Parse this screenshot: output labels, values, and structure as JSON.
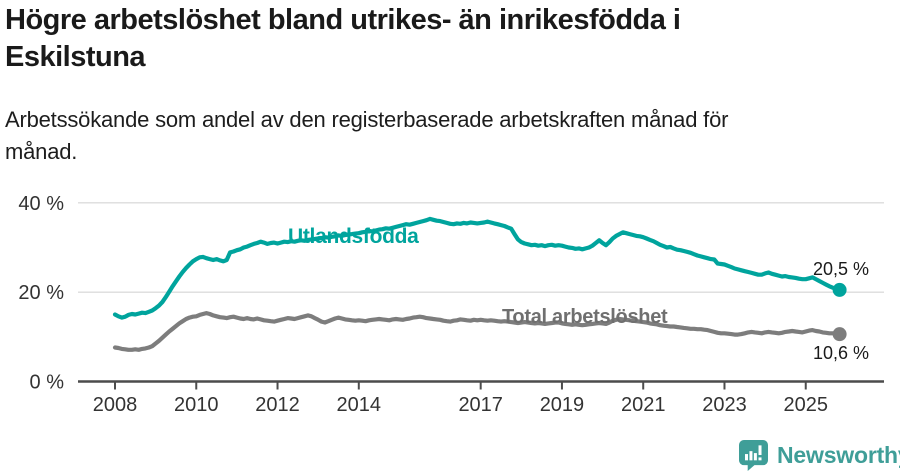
{
  "header": {
    "title": "Högre arbetslöshet bland utrikes- än inrikesfödda i Eskilstuna",
    "subtitle": "Arbetssökande som andel av den registerbaserade arbetskraften månad för månad."
  },
  "chart_data": {
    "type": "line",
    "x_unit": "month",
    "x_start": "2008-01",
    "x_end": "2025-11",
    "x_tick_years": [
      2008,
      2010,
      2012,
      2014,
      2017,
      2019,
      2021,
      2023,
      2025
    ],
    "y_ticks": [
      0,
      20,
      40
    ],
    "y_tick_labels": [
      "0 %",
      "20 %",
      "40 %"
    ],
    "ylim": [
      0,
      42
    ],
    "grid": "horizontal",
    "legend_position": "inline-labels",
    "series": [
      {
        "name": "Utlandsfödda",
        "color": "#00a49d",
        "end_value": 20.5,
        "end_label": "20,5 %",
        "values": [
          15.0,
          14.6,
          14.3,
          14.5,
          14.9,
          15.1,
          15.0,
          15.2,
          15.4,
          15.3,
          15.6,
          15.9,
          16.4,
          17.0,
          17.8,
          18.9,
          20.1,
          21.3,
          22.4,
          23.5,
          24.5,
          25.4,
          26.2,
          26.9,
          27.4,
          27.8,
          27.9,
          27.6,
          27.4,
          27.2,
          27.4,
          27.1,
          26.9,
          27.2,
          28.9,
          29.1,
          29.4,
          29.6,
          30.0,
          30.2,
          30.5,
          30.8,
          31.0,
          31.3,
          31.1,
          30.8,
          31.0,
          31.1,
          30.9,
          31.1,
          31.3,
          31.2,
          31.4,
          31.3,
          31.5,
          31.6,
          31.5,
          31.7,
          31.8,
          31.9,
          32.0,
          32.1,
          32.3,
          32.2,
          32.4,
          32.5,
          32.7,
          32.6,
          32.8,
          32.9,
          33.0,
          33.1,
          33.2,
          33.4,
          33.5,
          33.7,
          33.6,
          33.8,
          34.0,
          34.1,
          34.3,
          34.2,
          34.4,
          34.6,
          34.8,
          35.0,
          35.2,
          35.1,
          35.3,
          35.5,
          35.7,
          35.9,
          36.1,
          36.4,
          36.2,
          36.0,
          35.9,
          35.7,
          35.5,
          35.3,
          35.2,
          35.4,
          35.3,
          35.5,
          35.4,
          35.6,
          35.5,
          35.4,
          35.5,
          35.6,
          35.8,
          35.6,
          35.4,
          35.2,
          35.0,
          34.8,
          34.5,
          34.2,
          33.0,
          31.8,
          31.2,
          30.9,
          30.7,
          30.5,
          30.6,
          30.4,
          30.5,
          30.3,
          30.5,
          30.6,
          30.4,
          30.5,
          30.4,
          30.2,
          30.0,
          29.9,
          29.7,
          29.8,
          29.6,
          29.8,
          30.0,
          30.4,
          31.0,
          31.6,
          31.0,
          30.5,
          31.2,
          32.0,
          32.6,
          33.0,
          33.4,
          33.2,
          33.0,
          32.8,
          32.6,
          32.5,
          32.3,
          32.0,
          31.7,
          31.4,
          31.0,
          30.6,
          30.3,
          30.0,
          30.1,
          29.8,
          29.5,
          29.4,
          29.2,
          29.0,
          28.8,
          28.5,
          28.2,
          28.0,
          27.8,
          27.6,
          27.4,
          27.3,
          26.4,
          26.3,
          26.2,
          25.9,
          25.6,
          25.3,
          25.1,
          24.9,
          24.7,
          24.5,
          24.3,
          24.1,
          23.9,
          23.9,
          24.2,
          24.4,
          24.1,
          23.9,
          23.7,
          23.5,
          23.6,
          23.4,
          23.3,
          23.2,
          23.0,
          22.9,
          22.9,
          23.1,
          23.3,
          22.9,
          22.5,
          22.1,
          21.7,
          21.3,
          21.0,
          20.7,
          20.5
        ]
      },
      {
        "name": "Total arbetslöshet",
        "color": "#7d7d7d",
        "label_color": "#6f6f6f",
        "end_value": 10.6,
        "end_label": "10,6 %",
        "values": [
          7.6,
          7.5,
          7.3,
          7.2,
          7.1,
          7.1,
          7.2,
          7.1,
          7.3,
          7.4,
          7.6,
          7.9,
          8.5,
          9.1,
          9.8,
          10.5,
          11.2,
          11.8,
          12.4,
          13.0,
          13.5,
          14.0,
          14.3,
          14.5,
          14.6,
          14.9,
          15.1,
          15.3,
          15.1,
          14.8,
          14.6,
          14.4,
          14.3,
          14.2,
          14.4,
          14.5,
          14.3,
          14.1,
          14.0,
          14.2,
          14.0,
          13.9,
          14.1,
          13.9,
          13.7,
          13.6,
          13.5,
          13.4,
          13.6,
          13.8,
          14.0,
          14.2,
          14.1,
          14.0,
          14.2,
          14.4,
          14.6,
          14.8,
          14.6,
          14.2,
          13.8,
          13.4,
          13.2,
          13.5,
          13.8,
          14.1,
          14.3,
          14.1,
          13.9,
          13.8,
          13.7,
          13.6,
          13.7,
          13.6,
          13.5,
          13.7,
          13.8,
          13.9,
          14.0,
          13.9,
          13.8,
          13.7,
          13.9,
          14.0,
          13.9,
          13.8,
          14.0,
          14.1,
          14.3,
          14.4,
          14.5,
          14.4,
          14.2,
          14.1,
          14.0,
          13.9,
          13.8,
          13.6,
          13.5,
          13.4,
          13.6,
          13.7,
          13.9,
          13.8,
          13.7,
          13.6,
          13.8,
          13.7,
          13.8,
          13.7,
          13.6,
          13.7,
          13.6,
          13.5,
          13.4,
          13.5,
          13.4,
          13.3,
          13.2,
          13.1,
          13.2,
          13.3,
          13.2,
          13.1,
          13.0,
          13.1,
          13.0,
          12.9,
          13.0,
          13.1,
          13.2,
          13.2,
          13.0,
          12.9,
          12.8,
          12.7,
          12.8,
          12.7,
          12.6,
          12.7,
          12.8,
          12.9,
          13.0,
          13.1,
          13.0,
          12.9,
          13.2,
          13.6,
          13.8,
          14.0,
          13.9,
          13.8,
          13.7,
          13.6,
          13.5,
          13.4,
          13.3,
          13.2,
          13.0,
          12.9,
          12.8,
          12.6,
          12.5,
          12.4,
          12.3,
          12.3,
          12.2,
          12.1,
          12.0,
          11.9,
          11.8,
          11.8,
          11.7,
          11.7,
          11.6,
          11.5,
          11.3,
          11.1,
          10.9,
          10.8,
          10.8,
          10.7,
          10.6,
          10.5,
          10.5,
          10.6,
          10.8,
          11.0,
          11.1,
          11.0,
          10.9,
          10.8,
          11.0,
          11.1,
          11.0,
          10.9,
          10.8,
          10.9,
          11.1,
          11.2,
          11.3,
          11.2,
          11.1,
          11.0,
          11.2,
          11.4,
          11.5,
          11.3,
          11.2,
          11.0,
          10.9,
          10.8,
          10.8,
          10.7,
          10.6
        ]
      }
    ]
  },
  "colors": {
    "grid": "#dcdcdc",
    "axis": "#4c4c4c",
    "axis_text": "#333333",
    "logo": "#3f9e98"
  },
  "footer": {
    "brand": "Newsworthy"
  }
}
